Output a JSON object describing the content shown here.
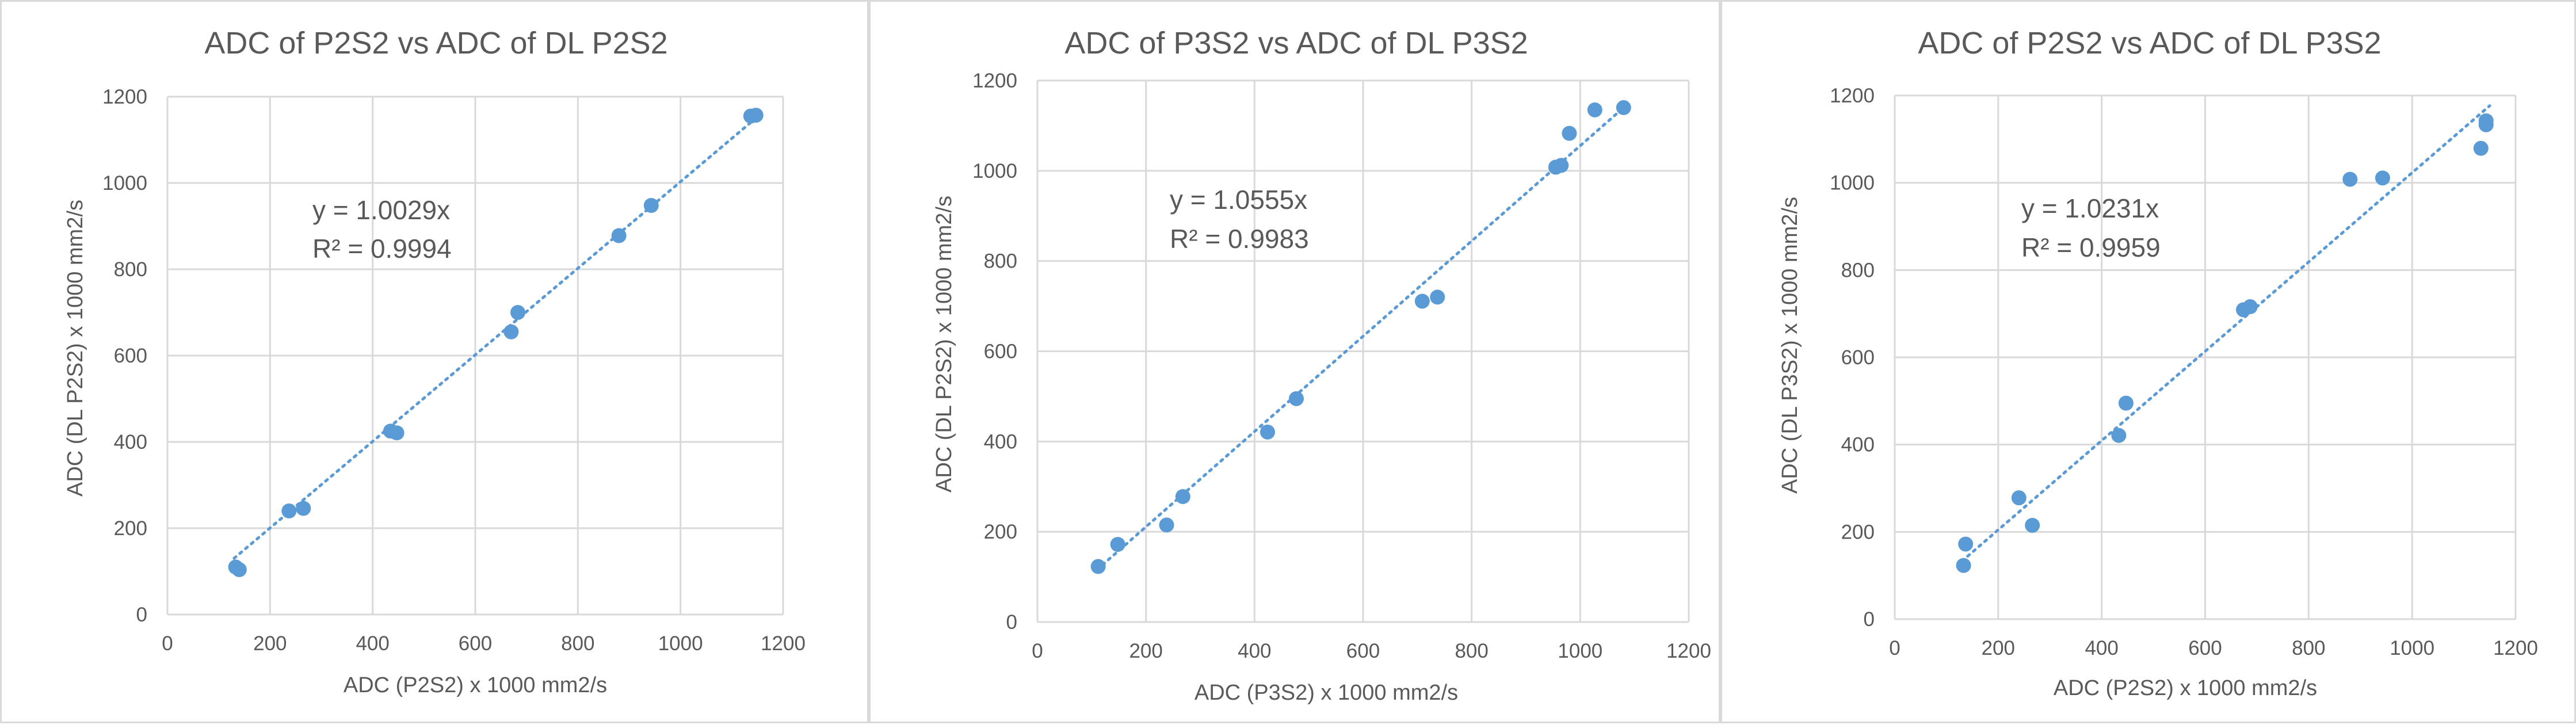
{
  "chart_data": [
    {
      "type": "scatter",
      "title": "ADC of P2S2 vs ADC of DL P2S2",
      "xlabel": "ADC (P2S2) x 1000 mm2/s",
      "ylabel": "ADC (DL P2S2) x 1000 mm2/s",
      "xlim": [
        0,
        1200
      ],
      "ylim": [
        0,
        1200
      ],
      "xticks": [
        "0",
        "200",
        "400",
        "600",
        "800",
        "1000",
        "1200"
      ],
      "yticks": [
        "0",
        "200",
        "400",
        "600",
        "800",
        "1000",
        "1200"
      ],
      "grid": true,
      "trendline": {
        "slope": 1.0029,
        "x_range": [
          130,
          1150
        ]
      },
      "equation": "y = 1.0029x",
      "r_squared": "R² = 0.9994",
      "points": [
        [
          133,
          110
        ],
        [
          140,
          104
        ],
        [
          237,
          240
        ],
        [
          265,
          246
        ],
        [
          435,
          425
        ],
        [
          447,
          421
        ],
        [
          670,
          655
        ],
        [
          683,
          700
        ],
        [
          880,
          878
        ],
        [
          943,
          948
        ],
        [
          1137,
          1155
        ],
        [
          1147,
          1157
        ]
      ]
    },
    {
      "type": "scatter",
      "title": "ADC of P3S2 vs ADC of DL P3S2",
      "xlabel": "ADC (P3S2) x 1000 mm2/s",
      "ylabel": "ADC (DL P2S2) x 1000 mm2/s",
      "xlim": [
        0,
        1200
      ],
      "ylim": [
        0,
        1200
      ],
      "xticks": [
        "0",
        "200",
        "400",
        "600",
        "800",
        "1000",
        "1200"
      ],
      "yticks": [
        "0",
        "200",
        "400",
        "600",
        "800",
        "1000",
        "1200"
      ],
      "grid": true,
      "trendline": {
        "slope": 1.0555,
        "x_range": [
          110,
          1085
        ]
      },
      "equation": "y = 1.0555x",
      "r_squared": "R² = 0.9983",
      "points": [
        [
          112,
          123
        ],
        [
          148,
          172
        ],
        [
          238,
          215
        ],
        [
          268,
          278
        ],
        [
          424,
          421
        ],
        [
          477,
          495
        ],
        [
          709,
          711
        ],
        [
          737,
          720
        ],
        [
          955,
          1008
        ],
        [
          965,
          1012
        ],
        [
          980,
          1083
        ],
        [
          1027,
          1135
        ],
        [
          1080,
          1140
        ]
      ]
    },
    {
      "type": "scatter",
      "title": "ADC of P2S2 vs ADC of DL P3S2",
      "xlabel": "ADC (P2S2) x 1000 mm2/s",
      "ylabel": "ADC (DL P3S2) x 1000 mm2/s",
      "xlim": [
        0,
        1200
      ],
      "ylim": [
        0,
        1200
      ],
      "xticks": [
        "0",
        "200",
        "400",
        "600",
        "800",
        "1000",
        "1200"
      ],
      "yticks": [
        "0",
        "200",
        "400",
        "600",
        "800",
        "1000",
        "1200"
      ],
      "grid": true,
      "trendline": {
        "slope": 1.0231,
        "x_range": [
          130,
          1150
        ]
      },
      "equation": "y = 1.0231x",
      "r_squared": "R² = 0.9959",
      "points": [
        [
          133,
          123
        ],
        [
          137,
          172
        ],
        [
          240,
          278
        ],
        [
          266,
          215
        ],
        [
          433,
          421
        ],
        [
          447,
          495
        ],
        [
          674,
          709
        ],
        [
          687,
          716
        ],
        [
          880,
          1008
        ],
        [
          943,
          1011
        ],
        [
          1133,
          1079
        ],
        [
          1143,
          1133
        ],
        [
          1143,
          1142
        ]
      ]
    }
  ],
  "colors": {
    "marker": "#5b9bd5",
    "trendline": "#5b9bd5",
    "grid": "#d9d9d9",
    "text": "#595959"
  }
}
